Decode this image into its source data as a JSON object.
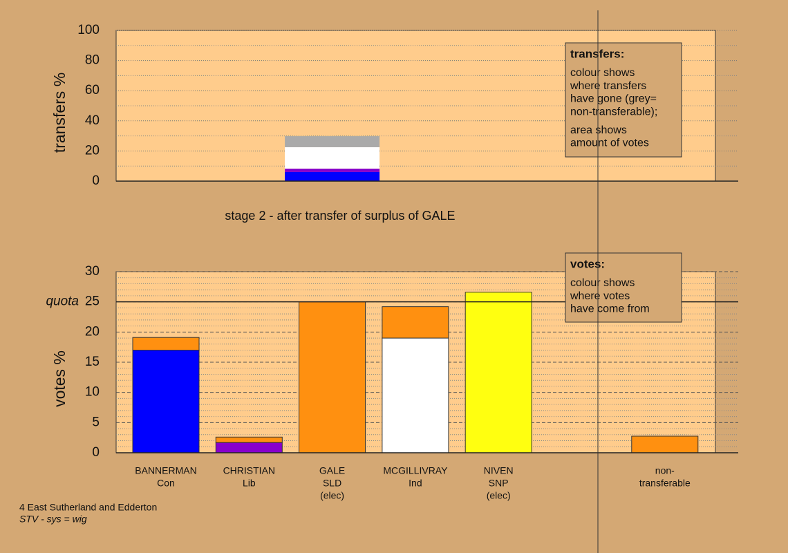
{
  "chart_data": [
    {
      "type": "bar",
      "stacked": true,
      "ylabel": "transfers %",
      "categories": [
        null,
        null,
        null,
        null,
        null,
        null,
        null
      ],
      "series": [
        {
          "color": "#0000ff",
          "values": [
            null,
            null,
            6,
            null,
            null,
            null,
            null
          ]
        },
        {
          "color": "#8800cc",
          "values": [
            null,
            null,
            2.3,
            null,
            null,
            null,
            null
          ]
        },
        {
          "color": "#ffffff",
          "values": [
            null,
            null,
            14.2,
            null,
            null,
            null,
            null
          ]
        },
        {
          "color": "#aaaaaa",
          "values": [
            null,
            null,
            7.3,
            null,
            null,
            null,
            null
          ]
        }
      ],
      "ylim": [
        0,
        100
      ],
      "yticks": [
        0,
        20,
        40,
        60,
        80,
        100
      ],
      "minor_yticks": [
        10,
        30,
        50,
        70,
        90
      ],
      "grid": true,
      "note": {
        "title": "transfers:",
        "paragraphs": [
          [
            "colour shows",
            "where transfers",
            "have gone (grey=",
            "non-transferable);"
          ],
          [
            "area shows",
            "amount of votes"
          ]
        ]
      }
    },
    {
      "type": "bar",
      "stacked": true,
      "ylabel": "votes %",
      "categories": [
        [
          "BANNERMAN",
          "Con"
        ],
        [
          "CHRISTIAN",
          "Lib"
        ],
        [
          "GALE",
          "SLD",
          "(elec)"
        ],
        [
          "MCGILLIVRAY",
          "Ind"
        ],
        [
          "NIVEN",
          "SNP",
          "(elec)"
        ],
        null,
        [
          "non-",
          "transferable"
        ]
      ],
      "series": [
        {
          "color": "#0000ff",
          "values": [
            17,
            null,
            null,
            null,
            null,
            null,
            null
          ]
        },
        {
          "color": "#8800cc",
          "values": [
            null,
            1.7,
            null,
            null,
            null,
            null,
            null
          ]
        },
        {
          "color": "#ffffff",
          "values": [
            null,
            null,
            null,
            19,
            null,
            null,
            null
          ]
        },
        {
          "color": "#ffff10",
          "values": [
            null,
            null,
            null,
            null,
            26.6,
            null,
            null
          ]
        },
        {
          "color": "#ff9010",
          "values": [
            2.1,
            0.9,
            25,
            5.2,
            null,
            null,
            2.75
          ]
        }
      ],
      "ylim": [
        0,
        30
      ],
      "yticks": [
        0,
        5,
        10,
        15,
        20,
        25,
        30
      ],
      "minor_yticks": [
        1,
        2,
        3,
        4,
        6,
        7,
        8,
        9,
        11,
        12,
        13,
        14,
        16,
        17,
        18,
        19,
        21,
        22,
        23,
        24,
        26,
        27,
        28,
        29
      ],
      "grid": true,
      "quota": {
        "label": "quota",
        "value": 25
      },
      "note": {
        "title": "votes:",
        "paragraphs": [
          [
            "colour shows",
            "where votes",
            "have come from"
          ]
        ]
      }
    }
  ],
  "stage_label": "stage 2 - after transfer of surplus of GALE",
  "footer": [
    "4 East Sutherland and Edderton",
    "STV - sys = wig"
  ]
}
